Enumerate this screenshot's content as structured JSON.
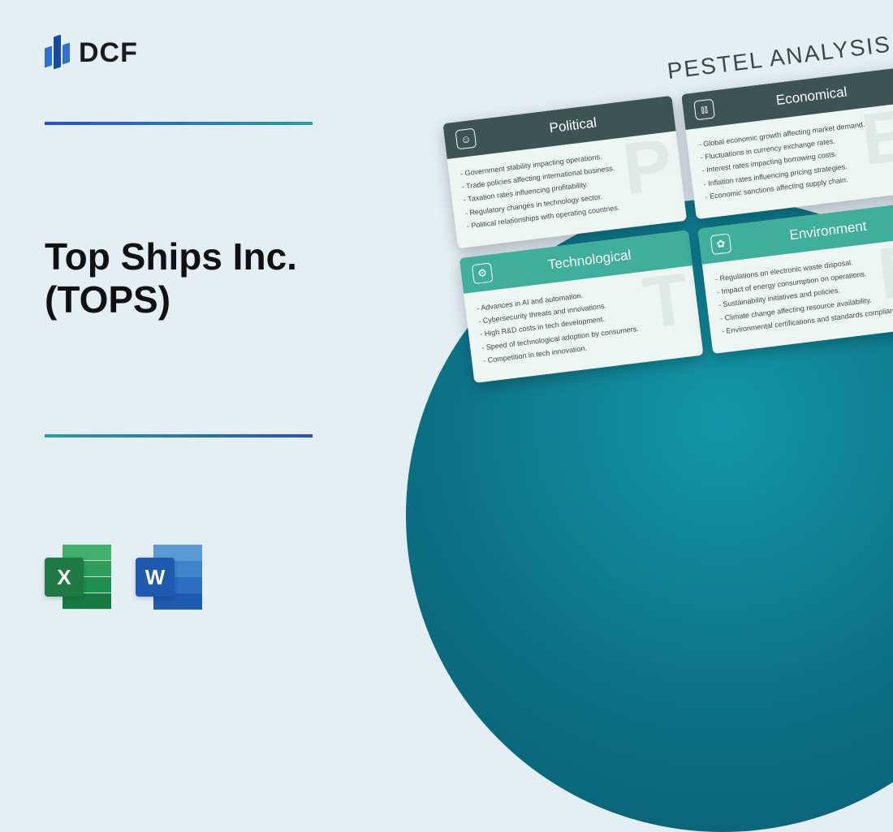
{
  "logo": {
    "text": "DCF"
  },
  "title": "Top Ships Inc.\n(TOPS)",
  "icons": {
    "excel_letter": "X",
    "word_letter": "W"
  },
  "pestel": {
    "heading": "PESTEL ANALYSIS",
    "cards": [
      {
        "title": "Political",
        "watermark": "P",
        "icon": "☺",
        "variant": "dark",
        "items": [
          "- Government stability impacting operations.",
          "- Trade policies affecting international business.",
          "- Taxation rates influencing profitability.",
          "- Regulatory changes in technology sector.",
          "- Political relationships with operating countries."
        ]
      },
      {
        "title": "Economical",
        "watermark": "E",
        "icon": "⫾⫾",
        "variant": "dark",
        "items": [
          "- Global economic growth affecting market demand.",
          "- Fluctuations in currency exchange rates.",
          "- Interest rates impacting borrowing costs.",
          "- Inflation rates influencing pricing strategies.",
          "- Economic sanctions affecting supply chain."
        ]
      },
      {
        "title": "Technological",
        "watermark": "T",
        "icon": "⚙",
        "variant": "teal",
        "items": [
          "- Advances in AI and automation.",
          "- Cybersecurity threats and innovations.",
          "- High R&D costs in tech development.",
          "- Speed of technological adoption by consumers.",
          "- Competition in tech innovation."
        ]
      },
      {
        "title": "Environment",
        "watermark": "E",
        "icon": "✿",
        "variant": "teal",
        "items": [
          "- Regulations on electronic waste disposal.",
          "- Impact of energy consumption on operations.",
          "- Sustainability initiatives and policies.",
          "- Climate change affecting resource availability.",
          "- Environmental certifications and standards compliance."
        ]
      }
    ]
  },
  "colors": {
    "page_bg": "#e3eef5",
    "circle_gradient_from": "#1397a8",
    "circle_gradient_to": "#0a5d72",
    "header_dark": "#3e5353",
    "header_teal": "#3fae9a",
    "card_bg": "#eef6f4"
  }
}
